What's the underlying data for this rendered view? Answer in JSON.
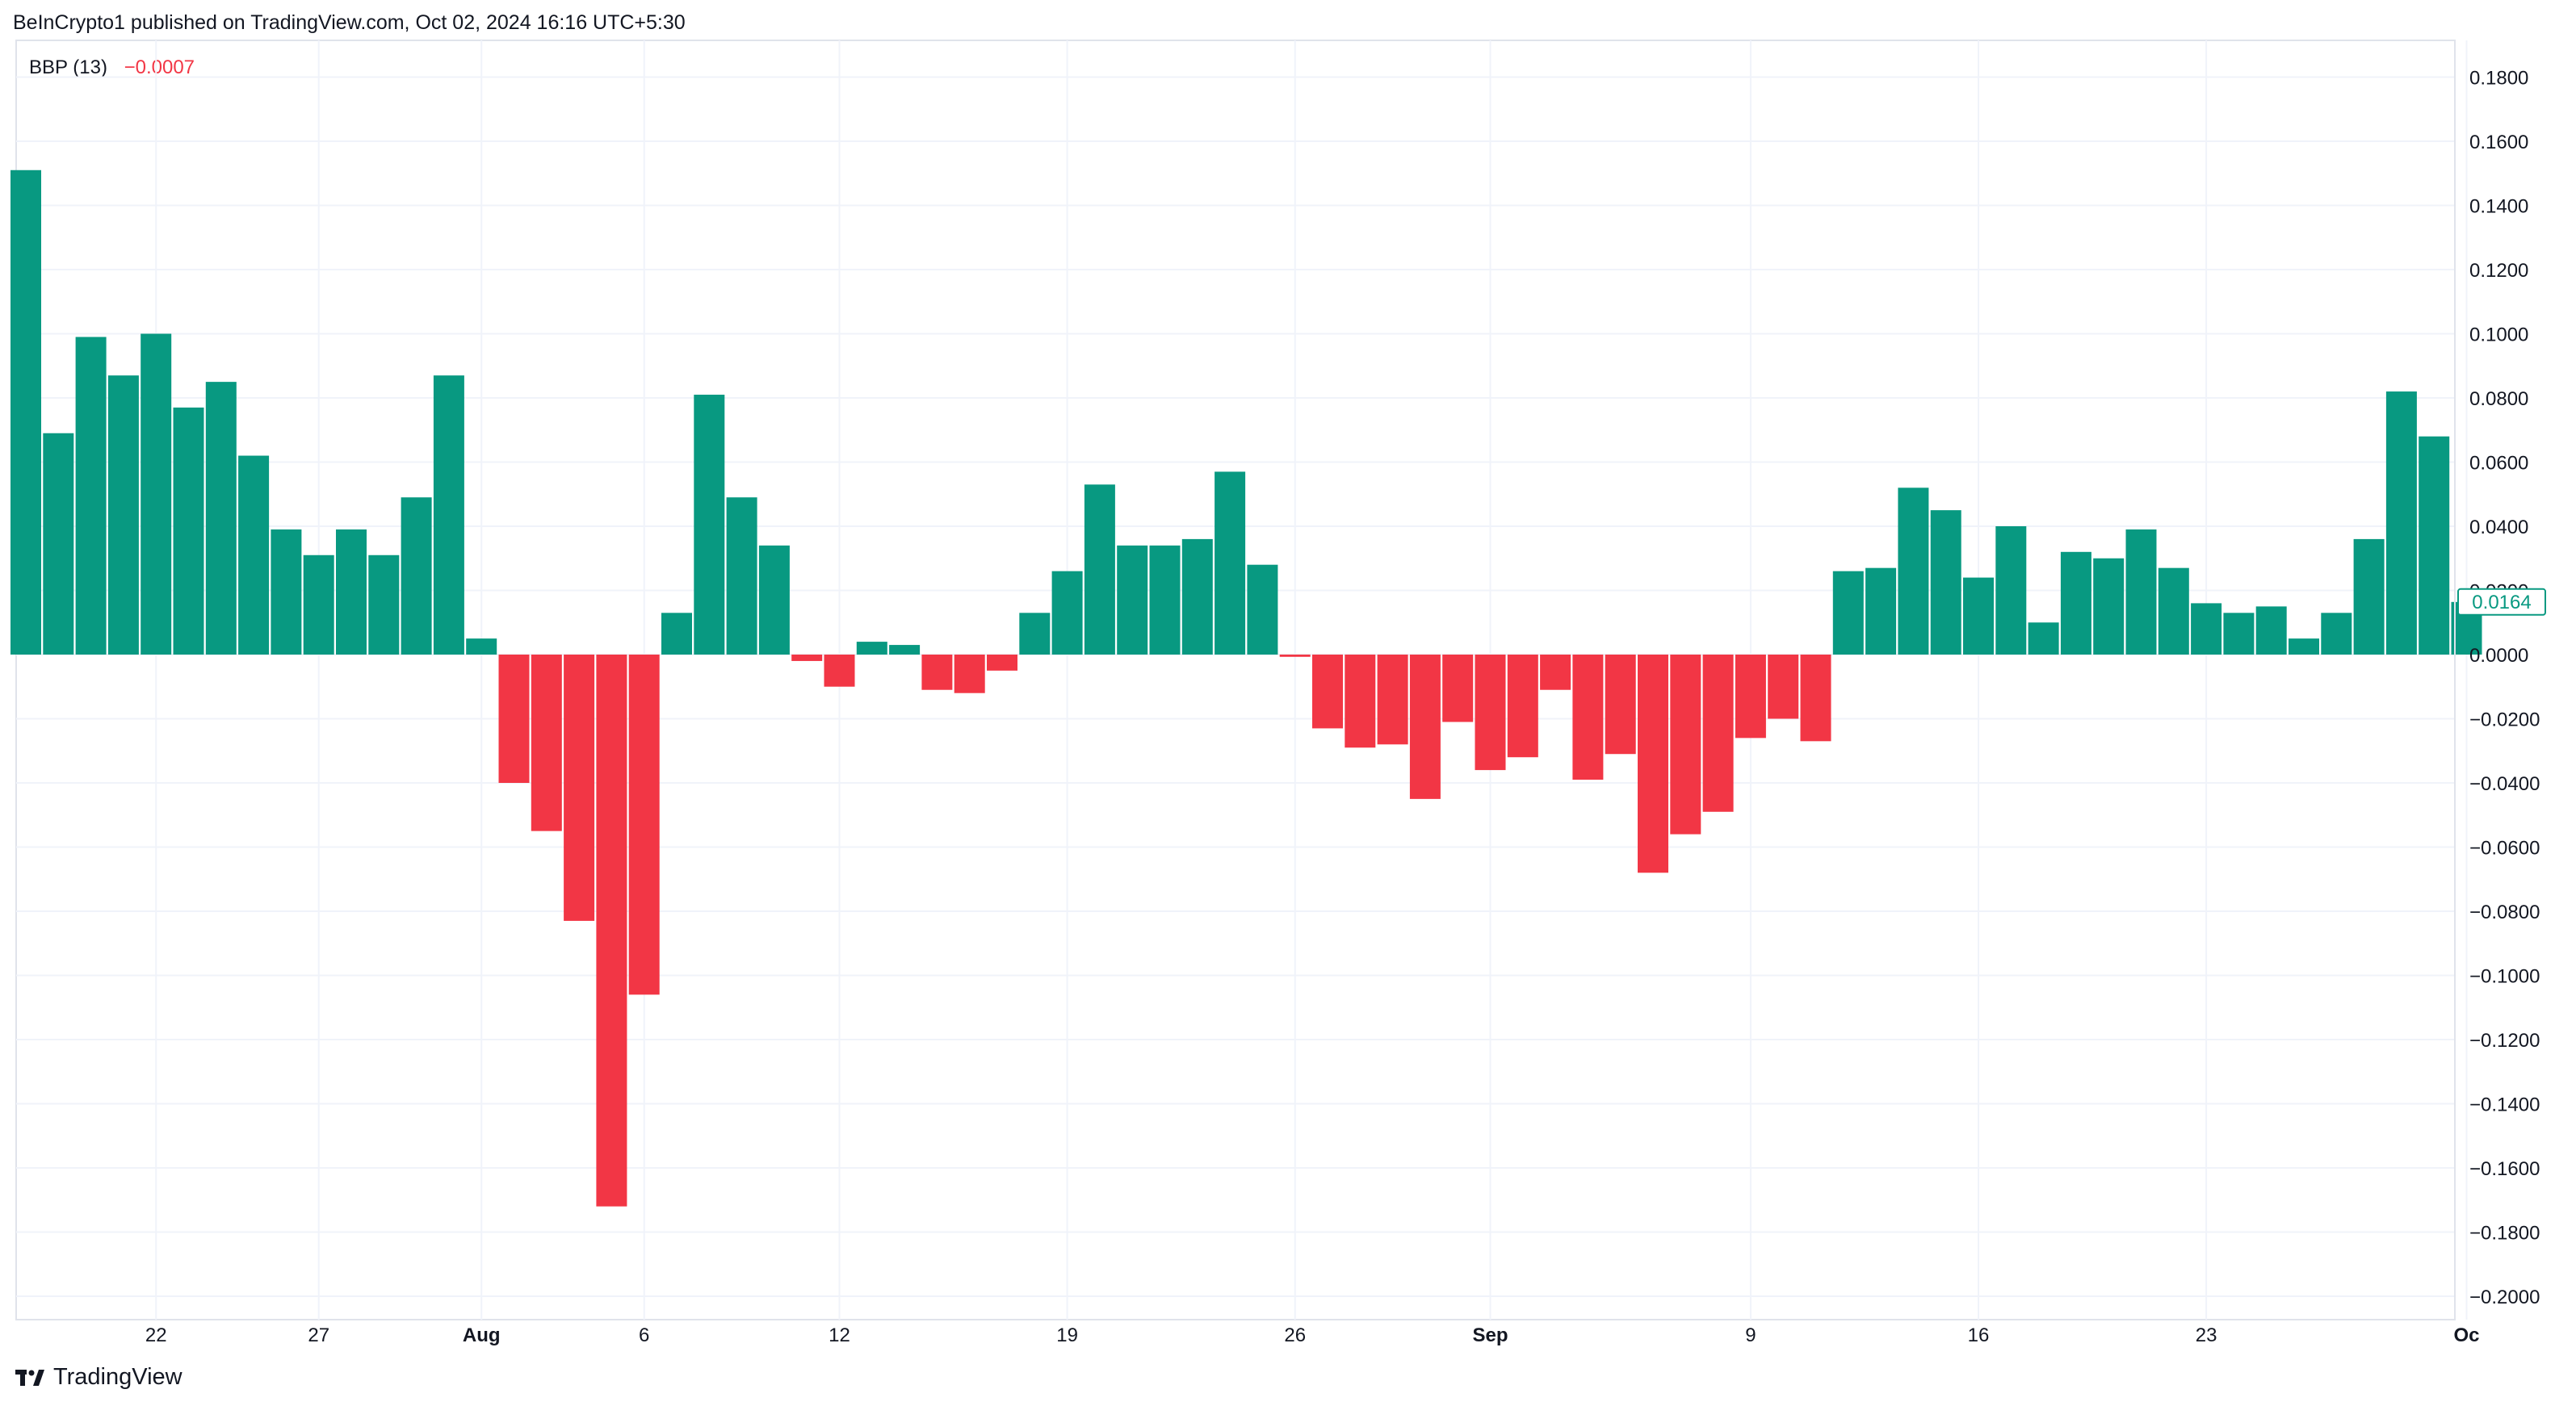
{
  "header": {
    "published": "BeInCrypto1 published on TradingView.com, Oct 02, 2024 16:16 UTC+5:30"
  },
  "indicator": {
    "name": "BBP (13)",
    "value": "−0.0007"
  },
  "footer": {
    "brand": "TradingView"
  },
  "colors": {
    "positive": "#089981",
    "negative": "#f23645",
    "grid": "#f0f3fa",
    "axis_text": "#131722"
  },
  "chart_data": {
    "type": "bar",
    "title": "BBP (13)",
    "xlabel": "",
    "ylabel": "",
    "ylim": [
      -0.2,
      0.19
    ],
    "y_ticks": [
      {
        "value": 0.18,
        "label": "0.1800"
      },
      {
        "value": 0.16,
        "label": "0.1600"
      },
      {
        "value": 0.14,
        "label": "0.1400"
      },
      {
        "value": 0.12,
        "label": "0.1200"
      },
      {
        "value": 0.1,
        "label": "0.1000"
      },
      {
        "value": 0.08,
        "label": "0.0800"
      },
      {
        "value": 0.06,
        "label": "0.0600"
      },
      {
        "value": 0.04,
        "label": "0.0400"
      },
      {
        "value": 0.02,
        "label": "0.0200"
      },
      {
        "value": 0.0,
        "label": "0.0000"
      },
      {
        "value": -0.02,
        "label": "−0.0200"
      },
      {
        "value": -0.04,
        "label": "−0.0400"
      },
      {
        "value": -0.06,
        "label": "−0.0600"
      },
      {
        "value": -0.08,
        "label": "−0.0800"
      },
      {
        "value": -0.1,
        "label": "−0.1000"
      },
      {
        "value": -0.12,
        "label": "−0.1200"
      },
      {
        "value": -0.14,
        "label": "−0.1400"
      },
      {
        "value": -0.16,
        "label": "−0.1600"
      },
      {
        "value": -0.18,
        "label": "−0.1800"
      },
      {
        "value": -0.2,
        "label": "−0.2000"
      }
    ],
    "x_ticks": [
      {
        "index": 4,
        "label": "22",
        "bold": false
      },
      {
        "index": 9,
        "label": "27",
        "bold": false
      },
      {
        "index": 14,
        "label": "Aug",
        "bold": true
      },
      {
        "index": 19,
        "label": "6",
        "bold": false
      },
      {
        "index": 25,
        "label": "12",
        "bold": false
      },
      {
        "index": 32,
        "label": "19",
        "bold": false
      },
      {
        "index": 39,
        "label": "26",
        "bold": false
      },
      {
        "index": 45,
        "label": "Sep",
        "bold": true
      },
      {
        "index": 53,
        "label": "9",
        "bold": false
      },
      {
        "index": 60,
        "label": "16",
        "bold": false
      },
      {
        "index": 67,
        "label": "23",
        "bold": false
      },
      {
        "index": 75,
        "label": "Oc",
        "bold": true
      }
    ],
    "values": [
      0.151,
      0.069,
      0.099,
      0.087,
      0.1,
      0.077,
      0.085,
      0.062,
      0.039,
      0.031,
      0.039,
      0.031,
      0.049,
      0.087,
      0.005,
      -0.04,
      -0.055,
      -0.083,
      -0.172,
      -0.106,
      0.013,
      0.081,
      0.049,
      0.034,
      -0.002,
      -0.01,
      0.004,
      0.003,
      -0.011,
      -0.012,
      -0.005,
      0.013,
      0.026,
      0.053,
      0.034,
      0.034,
      0.036,
      0.057,
      0.028,
      -0.0007,
      -0.023,
      -0.029,
      -0.028,
      -0.045,
      -0.021,
      -0.036,
      -0.032,
      -0.011,
      -0.039,
      -0.031,
      -0.068,
      -0.056,
      -0.049,
      -0.026,
      -0.02,
      -0.027,
      0.026,
      0.027,
      0.052,
      0.045,
      0.024,
      0.04,
      0.01,
      0.032,
      0.03,
      0.039,
      0.027,
      0.016,
      0.013,
      0.015,
      0.005,
      0.013,
      0.036,
      0.082,
      0.068,
      0.0164
    ],
    "last_value_label": "0.0164"
  }
}
